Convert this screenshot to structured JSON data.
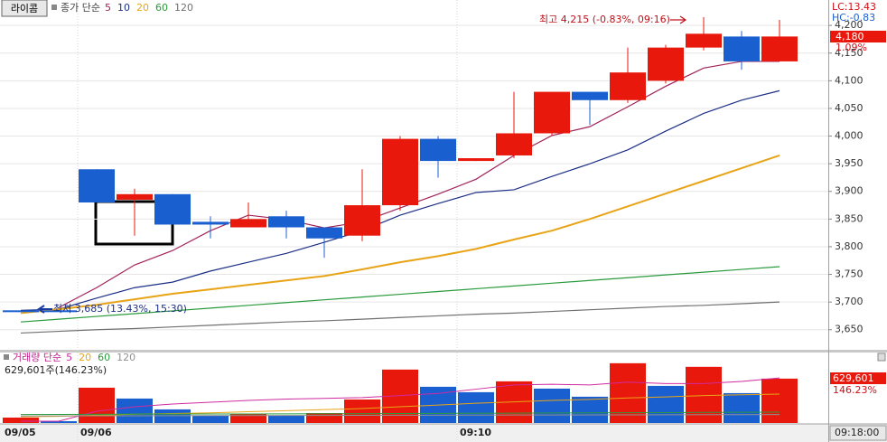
{
  "ticker": "라이콤",
  "lc_label": "LC:13.43",
  "hc_label": "HC:-0.83",
  "last_price_label": "4,180",
  "change_label": "1.09%",
  "chart_data": [
    {
      "type": "candlestick",
      "header": "종가 단순",
      "up_color": "#e8190c",
      "down_color": "#1a5fd0",
      "open": [
        3685,
        3685,
        3940,
        3885,
        3895,
        3845,
        3835,
        3855,
        3835,
        3820,
        3875,
        3995,
        3955,
        3965,
        4005,
        4080,
        4065,
        4100,
        4160,
        4180,
        4135
      ],
      "high": [
        3685,
        3685,
        3940,
        3905,
        3895,
        3855,
        3880,
        3865,
        3835,
        3940,
        4000,
        4000,
        3960,
        4080,
        4080,
        4080,
        4160,
        4165,
        4215,
        4190,
        4210
      ],
      "low": [
        3685,
        3685,
        3880,
        3820,
        3840,
        3815,
        3835,
        3815,
        3780,
        3810,
        3865,
        3925,
        3955,
        3960,
        4000,
        4020,
        4060,
        4095,
        4155,
        4120,
        4135
      ],
      "close": [
        3685,
        3685,
        3880,
        3895,
        3840,
        3840,
        3850,
        3835,
        3815,
        3875,
        3995,
        3955,
        3960,
        4005,
        4080,
        4065,
        4115,
        4160,
        4185,
        4135,
        4180
      ],
      "series": [
        {
          "name": "5",
          "color": "#a0245a",
          "values": [
            null,
            3690,
            3726,
            3767,
            3793,
            3829,
            3857,
            3849,
            3834,
            3845,
            3870,
            3895,
            3922,
            3965,
            4001,
            4017,
            4053,
            4090,
            4123,
            4135,
            4135
          ]
        },
        {
          "name": "10",
          "color": "#1c2f86",
          "values": [
            3685,
            3687,
            3707,
            3726,
            3736,
            3756,
            3772,
            3788,
            3808,
            3829,
            3857,
            3878,
            3898,
            3903,
            3927,
            3950,
            3975,
            4009,
            4041,
            4065,
            4082
          ]
        },
        {
          "name": "20",
          "color": "#e8a416",
          "values": [
            3680,
            3687,
            3695,
            3705,
            3715,
            3723,
            3731,
            3739,
            3747,
            3759,
            3772,
            3783,
            3796,
            3813,
            3829,
            3850,
            3873,
            3896,
            3919,
            3942,
            3965
          ]
        },
        {
          "name": "60",
          "color": "#2a9a3c",
          "values": [
            3664,
            3669,
            3674,
            3679,
            3684,
            3689,
            3694,
            3699,
            3704,
            3709,
            3714,
            3719,
            3724,
            3729,
            3734,
            3739,
            3744,
            3749,
            3754,
            3759,
            3764
          ]
        },
        {
          "name": "120",
          "color": "#707070",
          "values": [
            3644,
            3647,
            3650,
            3652,
            3655,
            3658,
            3661,
            3664,
            3666,
            3669,
            3672,
            3675,
            3678,
            3680,
            3683,
            3686,
            3689,
            3692,
            3694,
            3697,
            3700
          ]
        }
      ],
      "ylim": [
        3612,
        4246
      ],
      "yticks": [
        {
          "value": 3650,
          "label": "3,650"
        },
        {
          "value": 3700,
          "label": "3,700"
        },
        {
          "value": 3750,
          "label": "3,750"
        },
        {
          "value": 3800,
          "label": "3,800"
        },
        {
          "value": 3850,
          "label": "3,850"
        },
        {
          "value": 3900,
          "label": "3,900"
        },
        {
          "value": 3950,
          "label": "3,950"
        },
        {
          "value": 4000,
          "label": "4,000"
        },
        {
          "value": 4050,
          "label": "4,050"
        },
        {
          "value": 4100,
          "label": "4,100"
        },
        {
          "value": 4150,
          "label": "4,150"
        },
        {
          "value": 4200,
          "label": "4,200"
        }
      ],
      "grid": true,
      "high_annotation": "최고 4,215 (-0.83%, 09:16)",
      "low_annotation": "최저 3,685 (13.43%, 15:30)"
    },
    {
      "type": "bar",
      "header": "거래량 단순",
      "summary": "629,601주(146.23%)",
      "categories": [
        "09/05",
        null,
        "09/06",
        null,
        null,
        null,
        null,
        null,
        null,
        null,
        null,
        null,
        "09:10",
        null,
        null,
        null,
        null,
        null,
        null,
        null,
        null
      ],
      "values": [
        77000,
        26000,
        501000,
        347000,
        193000,
        103000,
        128000,
        103000,
        141000,
        334000,
        758000,
        514000,
        437000,
        591000,
        488000,
        373000,
        848000,
        527000,
        797000,
        424000,
        629601
      ],
      "colors": [
        "#e8190c",
        "#1a5fd0",
        "#e8190c",
        "#1a5fd0",
        "#1a5fd0",
        "#1a5fd0",
        "#e8190c",
        "#1a5fd0",
        "#e8190c",
        "#e8190c",
        "#e8190c",
        "#1a5fd0",
        "#1a5fd0",
        "#e8190c",
        "#1a5fd0",
        "#1a5fd0",
        "#e8190c",
        "#1a5fd0",
        "#e8190c",
        "#1a5fd0",
        "#e8190c"
      ],
      "series": [
        {
          "name": "5",
          "color": "#d02aa0",
          "values": [
            26000,
            26000,
            167000,
            231000,
            269000,
            295000,
            320000,
            340000,
            350000,
            360000,
            390000,
            420000,
            480000,
            540000,
            550000,
            540000,
            580000,
            560000,
            560000,
            590000,
            640000
          ]
        },
        {
          "name": "20",
          "color": "#e8a416",
          "values": [
            90000,
            95000,
            110000,
            125000,
            135000,
            145000,
            160000,
            175000,
            190000,
            205000,
            230000,
            255000,
            280000,
            300000,
            320000,
            335000,
            355000,
            370000,
            390000,
            400000,
            410000
          ]
        },
        {
          "name": "60",
          "color": "#2a9a3c",
          "values": [
            120000,
            122000,
            124000,
            126000,
            127000,
            128000,
            129000,
            130000,
            131000,
            132000,
            134000,
            136000,
            138000,
            140000,
            142000,
            144000,
            146000,
            148000,
            150000,
            152000,
            154000
          ]
        },
        {
          "name": "120",
          "color": "#909090",
          "values": [
            100000,
            101000,
            102000,
            103000,
            104000,
            105000,
            106000,
            107000,
            108000,
            109000,
            110000,
            111000,
            112000,
            113000,
            114000,
            115000,
            116000,
            117000,
            118000,
            119000,
            120000
          ]
        }
      ],
      "ylim": [
        0,
        1000000
      ],
      "last_label": "629,601",
      "last_pct": "146.23%",
      "time_label": "09:18:00"
    }
  ]
}
